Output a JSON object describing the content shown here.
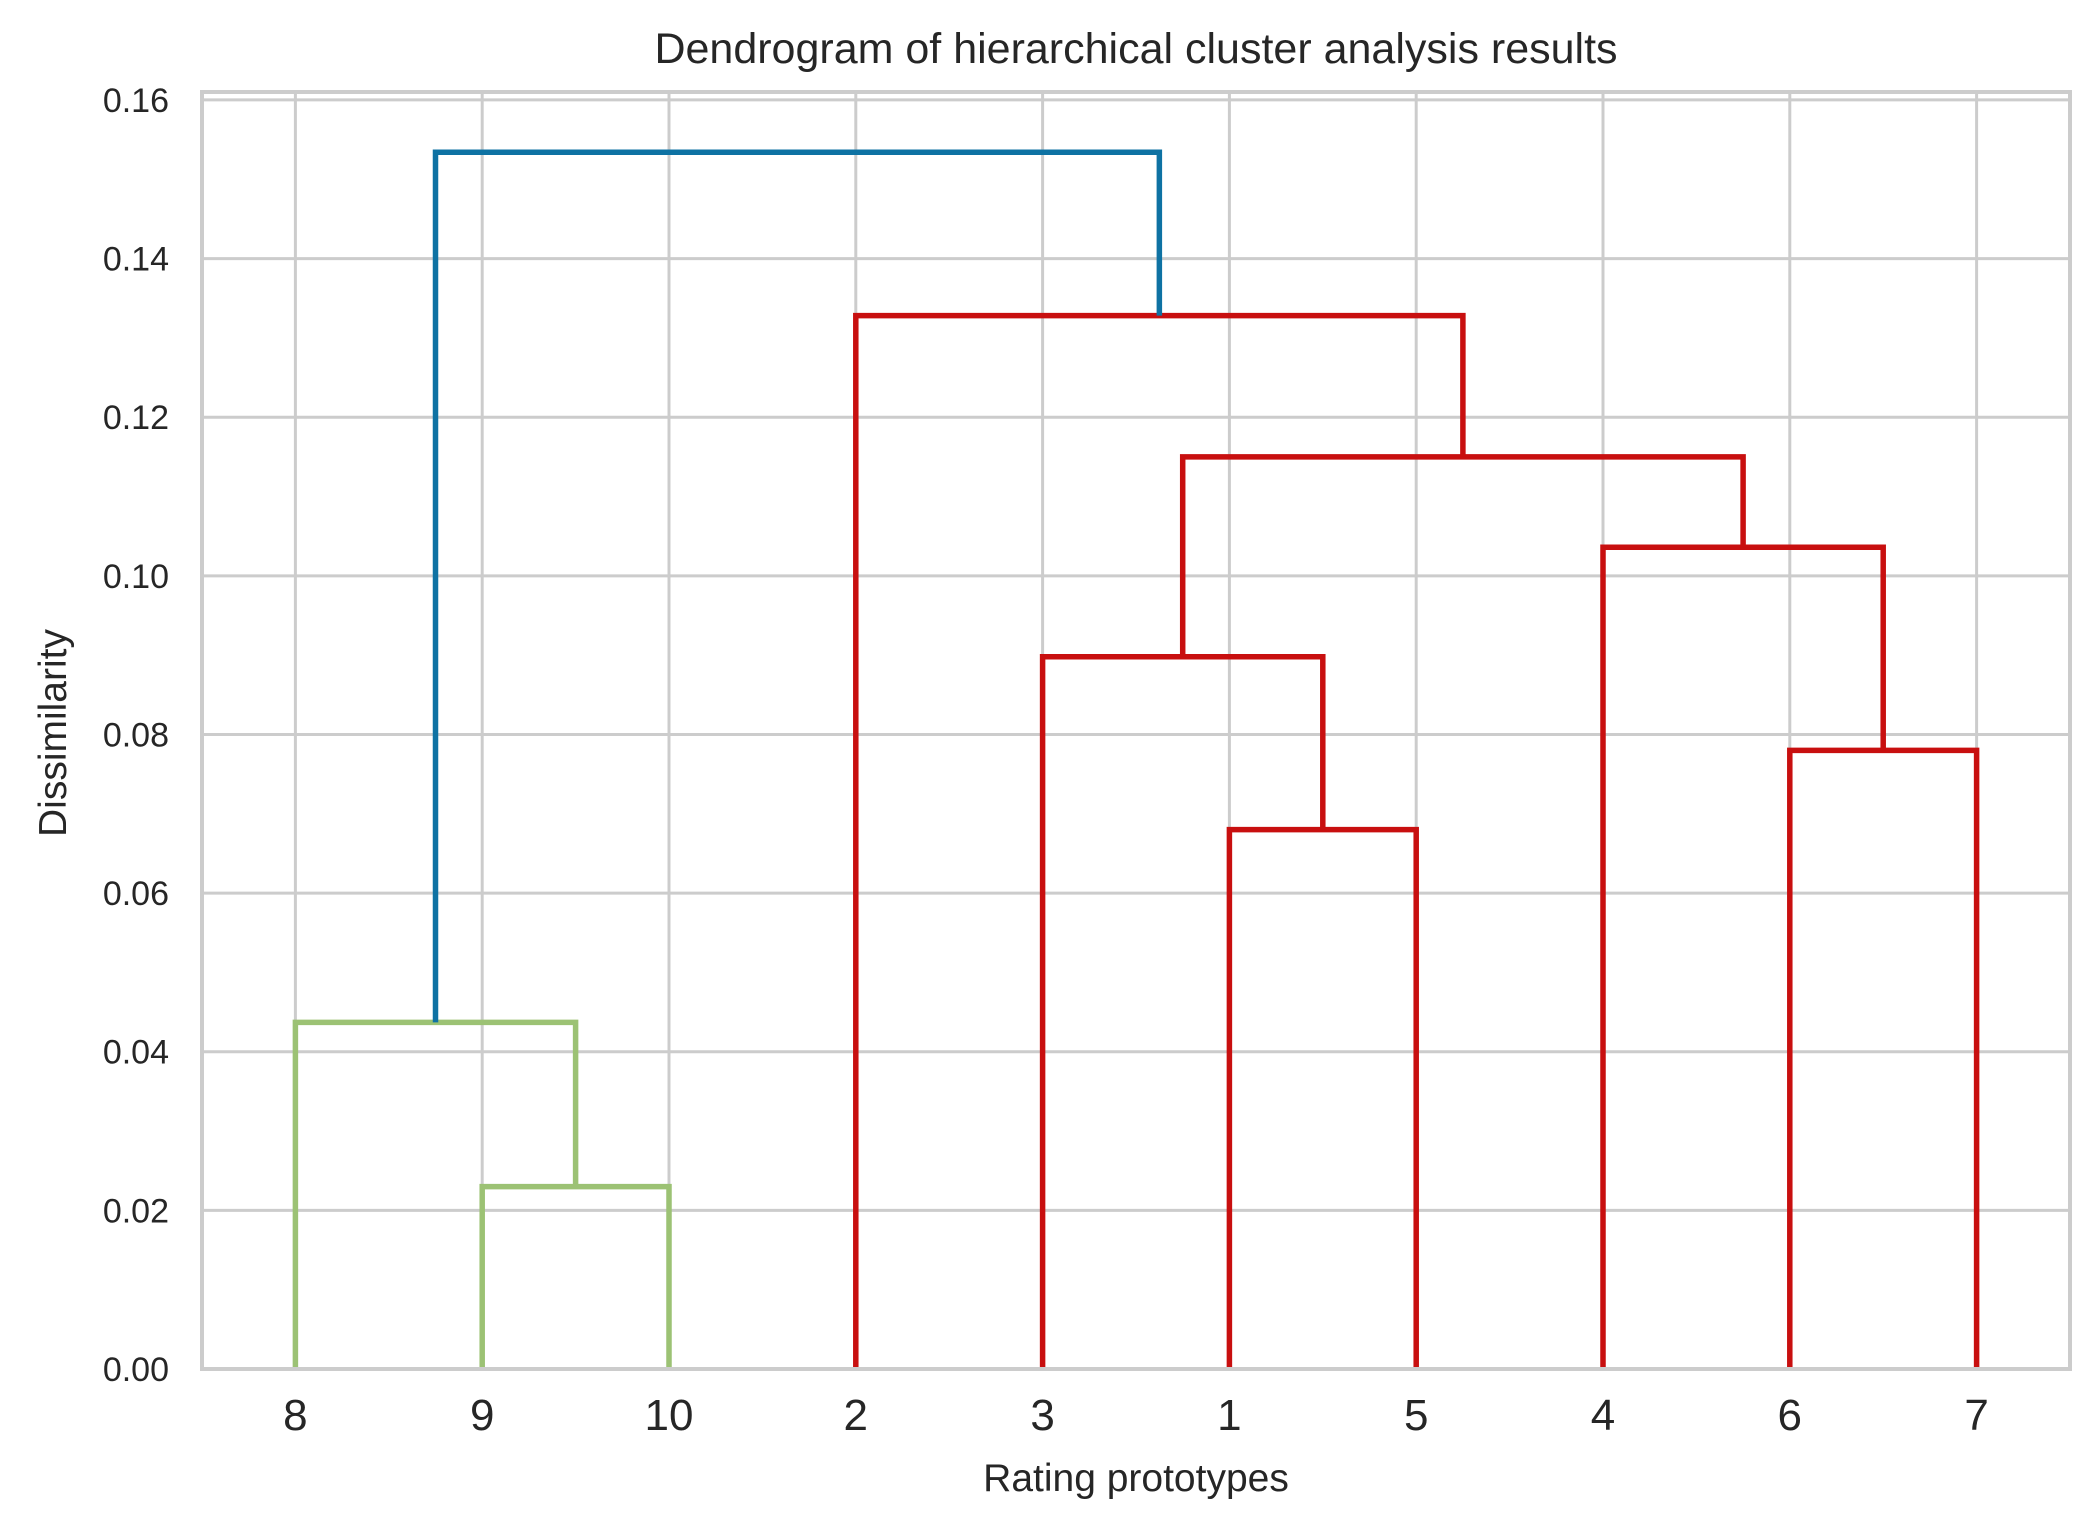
{
  "chart_data": {
    "type": "dendrogram",
    "title": "Dendrogram of hierarchical cluster analysis results",
    "xlabel": "Rating prototypes",
    "ylabel": "Dissimilarity",
    "ylim": [
      0,
      0.161
    ],
    "yticks": [
      "0.00",
      "0.02",
      "0.04",
      "0.06",
      "0.08",
      "0.10",
      "0.12",
      "0.14",
      "0.16"
    ],
    "ytick_values": [
      0,
      0.02,
      0.04,
      0.06,
      0.08,
      0.1,
      0.12,
      0.14,
      0.16
    ],
    "leaves": [
      "8",
      "9",
      "10",
      "2",
      "3",
      "1",
      "5",
      "4",
      "6",
      "7"
    ],
    "grid": true,
    "colors": {
      "green": "#9cc274",
      "red": "#c80f0f",
      "blue": "#0e72a3"
    },
    "merges": [
      {
        "left": "9",
        "right": "10",
        "height": 0.023,
        "color": "green"
      },
      {
        "left": "8",
        "right": "9+10",
        "height": 0.0437,
        "color": "green"
      },
      {
        "left": "1",
        "right": "5",
        "height": 0.068,
        "color": "red"
      },
      {
        "left": "6",
        "right": "7",
        "height": 0.078,
        "color": "red"
      },
      {
        "left": "3",
        "right": "1+5",
        "height": 0.0898,
        "color": "red"
      },
      {
        "left": "4",
        "right": "6+7",
        "height": 0.1036,
        "color": "red"
      },
      {
        "left": "3+1+5",
        "right": "4+6+7",
        "height": 0.115,
        "color": "red"
      },
      {
        "left": "2",
        "right": "3+1+5+4+6+7",
        "height": 0.1328,
        "color": "red"
      },
      {
        "left": "8+9+10",
        "right": "2+3+1+5+4+6+7",
        "height": 0.1534,
        "color": "blue"
      }
    ]
  }
}
